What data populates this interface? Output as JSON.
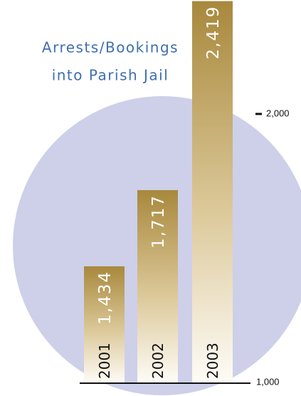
{
  "chart_data": {
    "type": "bar",
    "title": [
      "Arrests/Bookings",
      "into Parish Jail"
    ],
    "categories": [
      "2001",
      "2002",
      "2003"
    ],
    "values": [
      1434,
      1717,
      2419
    ],
    "value_labels": [
      "1,434",
      "1,717",
      "2,419"
    ],
    "color": "#a8883c",
    "ylim": [
      1000,
      2420
    ],
    "yticks": [
      {
        "value": 1000,
        "label": "1,000"
      },
      {
        "value": 2000,
        "label": "2,000"
      }
    ]
  }
}
